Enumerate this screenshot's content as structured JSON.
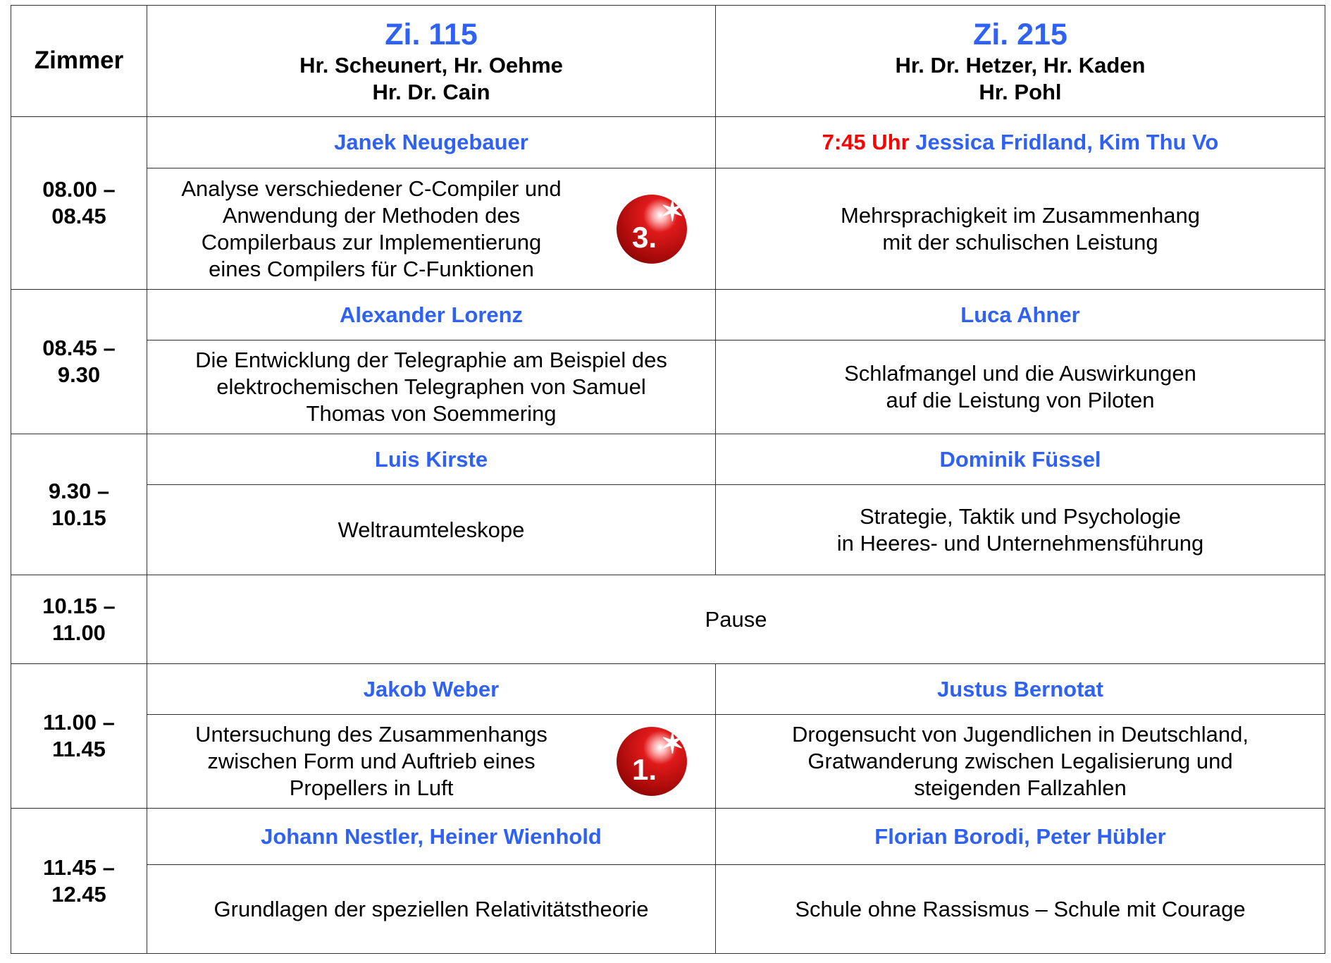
{
  "header": {
    "label": "Zimmer",
    "rooms": [
      {
        "room": "Zi. 115",
        "teachers_1": "Hr. Scheunert, Hr. Oehme",
        "teachers_2": "Hr. Dr. Cain"
      },
      {
        "room": "Zi. 215",
        "teachers_1": "Hr. Dr. Hetzer, Hr. Kaden",
        "teachers_2": "Hr. Pohl"
      }
    ]
  },
  "slots": [
    {
      "time_1": "08.00 –",
      "time_2": "08.45",
      "a": {
        "name": "Janek Neugebauer",
        "lines": [
          "Analyse verschiedener C-Compiler und",
          "Anwendung der Methoden des",
          "Compilerbaus zur Implementierung",
          "eines Compilers für C-Funktionen"
        ],
        "badge": "3."
      },
      "b": {
        "prefix": "7:45 Uhr",
        "name": "Jessica Fridland, Kim Thu Vo",
        "lines": [
          "Mehrsprachigkeit im Zusammenhang",
          "mit der schulischen Leistung"
        ]
      }
    },
    {
      "time_1": "08.45 –",
      "time_2": "9.30",
      "a": {
        "name": "Alexander Lorenz",
        "lines": [
          "Die Entwicklung der Telegraphie am Beispiel des",
          "elektrochemischen Telegraphen von Samuel",
          "Thomas von Soemmering"
        ]
      },
      "b": {
        "name": "Luca Ahner",
        "lines": [
          "Schlafmangel und die Auswirkungen",
          "auf die Leistung von Piloten"
        ]
      }
    },
    {
      "time_1": "9.30 –",
      "time_2": "10.15",
      "a": {
        "name": "Luis Kirste",
        "lines": [
          "Weltraumteleskope"
        ]
      },
      "b": {
        "name": "Dominik Füssel",
        "lines": [
          "Strategie, Taktik und Psychologie",
          "in Heeres- und Unternehmensführung"
        ]
      }
    },
    {
      "time_1": "10.15 –",
      "time_2": "11.00",
      "pause": "Pause"
    },
    {
      "time_1": "11.00 –",
      "time_2": "11.45",
      "a": {
        "name": "Jakob Weber",
        "lines": [
          "Untersuchung des Zusammenhangs",
          "zwischen Form und Auftrieb eines",
          "Propellers in Luft"
        ],
        "badge": "1."
      },
      "b": {
        "name": "Justus Bernotat",
        "lines": [
          "Drogensucht von Jugendlichen in Deutschland,",
          "Gratwanderung zwischen Legalisierung und",
          "steigenden Fallzahlen"
        ]
      }
    },
    {
      "time_1": "11.45 –",
      "time_2": "12.45",
      "a": {
        "name": "Johann Nestler, Heiner Wienhold",
        "lines": [
          "Grundlagen der speziellen Relativitätstheorie"
        ]
      },
      "b": {
        "name": "Florian Borodi, Peter Hübler",
        "lines": [
          "Schule ohne Rassismus – Schule mit Courage"
        ]
      }
    }
  ],
  "colors": {
    "name_blue": "#2f62f4",
    "time_red": "#ff0000",
    "badge_red": "#c00f0f"
  },
  "icons": {
    "badge": "red-star-ball-award-icon"
  }
}
